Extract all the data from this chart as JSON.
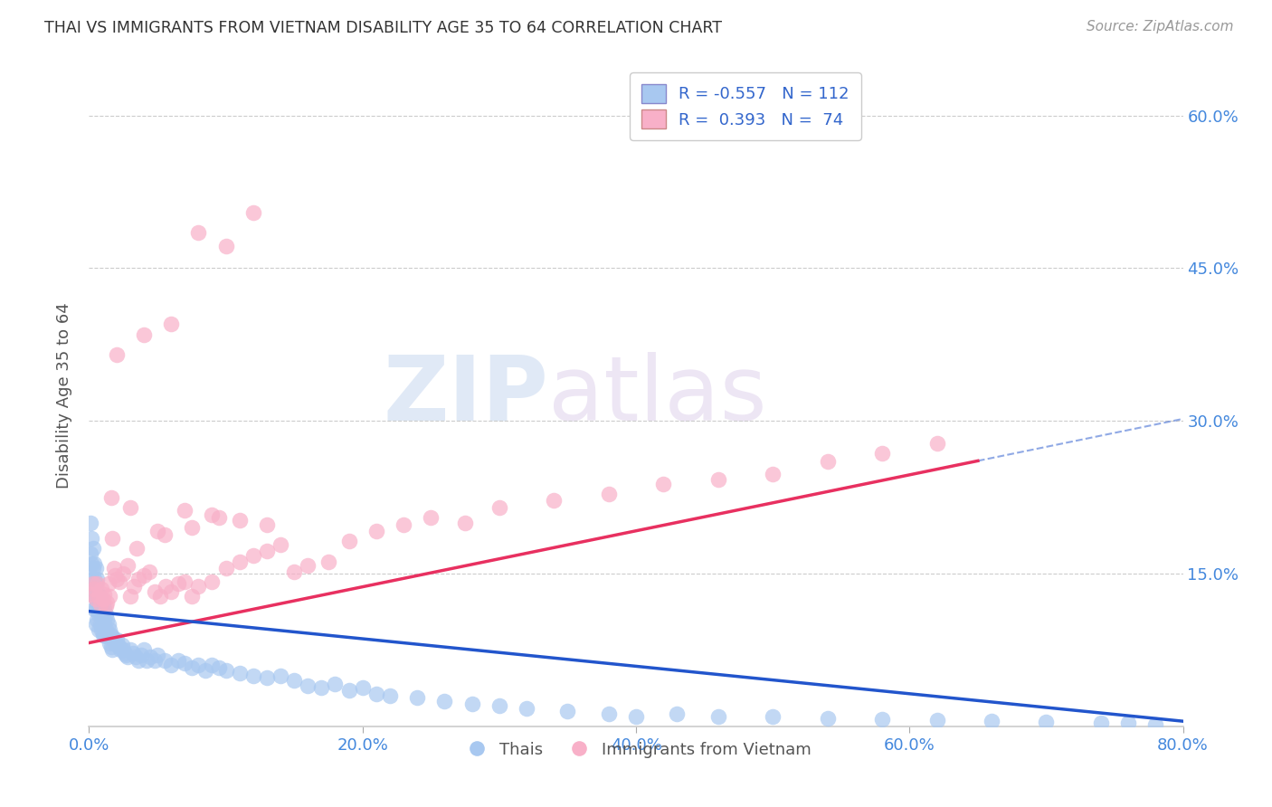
{
  "title": "THAI VS IMMIGRANTS FROM VIETNAM DISABILITY AGE 35 TO 64 CORRELATION CHART",
  "source": "Source: ZipAtlas.com",
  "ylabel": "Disability Age 35 to 64",
  "xlim": [
    0.0,
    0.8
  ],
  "ylim": [
    0.0,
    0.65
  ],
  "xticks": [
    0.0,
    0.2,
    0.4,
    0.6,
    0.8
  ],
  "xticklabels": [
    "0.0%",
    "20.0%",
    "40.0%",
    "60.0%",
    "80.0%"
  ],
  "yticks": [
    0.0,
    0.15,
    0.3,
    0.45,
    0.6
  ],
  "yticklabels_right": [
    "",
    "15.0%",
    "30.0%",
    "45.0%",
    "60.0%"
  ],
  "blue_color": "#a8c8f0",
  "blue_line_color": "#2255cc",
  "pink_color": "#f8b0c8",
  "pink_line_color": "#e83060",
  "legend_blue_label": "R = -0.557   N = 112",
  "legend_pink_label": "R =  0.393   N =  74",
  "blue_intercept": 0.113,
  "blue_slope": -0.135,
  "pink_intercept": 0.082,
  "pink_slope": 0.275,
  "watermark_zip": "ZIP",
  "watermark_atlas": "atlas",
  "legend_thai": "Thais",
  "legend_viet": "Immigrants from Vietnam",
  "blue_x": [
    0.001,
    0.001,
    0.002,
    0.002,
    0.002,
    0.003,
    0.003,
    0.003,
    0.004,
    0.004,
    0.004,
    0.004,
    0.005,
    0.005,
    0.005,
    0.005,
    0.005,
    0.006,
    0.006,
    0.006,
    0.006,
    0.007,
    0.007,
    0.007,
    0.007,
    0.008,
    0.008,
    0.008,
    0.009,
    0.009,
    0.009,
    0.01,
    0.01,
    0.01,
    0.01,
    0.011,
    0.011,
    0.011,
    0.012,
    0.012,
    0.013,
    0.013,
    0.014,
    0.014,
    0.015,
    0.015,
    0.016,
    0.016,
    0.017,
    0.017,
    0.018,
    0.019,
    0.02,
    0.021,
    0.022,
    0.023,
    0.024,
    0.025,
    0.026,
    0.027,
    0.028,
    0.03,
    0.032,
    0.034,
    0.036,
    0.038,
    0.04,
    0.042,
    0.045,
    0.048,
    0.05,
    0.055,
    0.06,
    0.065,
    0.07,
    0.075,
    0.08,
    0.085,
    0.09,
    0.095,
    0.1,
    0.11,
    0.12,
    0.13,
    0.14,
    0.15,
    0.16,
    0.17,
    0.18,
    0.19,
    0.2,
    0.21,
    0.22,
    0.24,
    0.26,
    0.28,
    0.3,
    0.32,
    0.35,
    0.38,
    0.4,
    0.43,
    0.46,
    0.5,
    0.54,
    0.58,
    0.62,
    0.66,
    0.7,
    0.74,
    0.76,
    0.78
  ],
  "blue_y": [
    0.2,
    0.17,
    0.185,
    0.16,
    0.145,
    0.175,
    0.155,
    0.135,
    0.16,
    0.145,
    0.13,
    0.115,
    0.155,
    0.14,
    0.125,
    0.115,
    0.1,
    0.145,
    0.13,
    0.12,
    0.105,
    0.13,
    0.12,
    0.11,
    0.095,
    0.125,
    0.115,
    0.1,
    0.12,
    0.11,
    0.095,
    0.12,
    0.11,
    0.1,
    0.09,
    0.115,
    0.105,
    0.09,
    0.11,
    0.095,
    0.105,
    0.09,
    0.1,
    0.088,
    0.095,
    0.082,
    0.09,
    0.078,
    0.088,
    0.075,
    0.085,
    0.082,
    0.085,
    0.08,
    0.078,
    0.075,
    0.08,
    0.075,
    0.072,
    0.07,
    0.068,
    0.075,
    0.072,
    0.068,
    0.065,
    0.07,
    0.075,
    0.065,
    0.068,
    0.065,
    0.07,
    0.065,
    0.06,
    0.065,
    0.062,
    0.058,
    0.06,
    0.055,
    0.06,
    0.058,
    0.055,
    0.052,
    0.05,
    0.048,
    0.05,
    0.045,
    0.04,
    0.038,
    0.042,
    0.035,
    0.038,
    0.032,
    0.03,
    0.028,
    0.025,
    0.022,
    0.02,
    0.018,
    0.015,
    0.012,
    0.01,
    0.012,
    0.01,
    0.01,
    0.008,
    0.007,
    0.006,
    0.005,
    0.004,
    0.003,
    0.003,
    0.002
  ],
  "pink_x": [
    0.002,
    0.003,
    0.004,
    0.005,
    0.006,
    0.007,
    0.008,
    0.009,
    0.01,
    0.011,
    0.012,
    0.013,
    0.014,
    0.015,
    0.016,
    0.017,
    0.018,
    0.019,
    0.02,
    0.022,
    0.025,
    0.028,
    0.03,
    0.033,
    0.036,
    0.04,
    0.044,
    0.048,
    0.052,
    0.056,
    0.06,
    0.065,
    0.07,
    0.075,
    0.08,
    0.09,
    0.1,
    0.11,
    0.12,
    0.13,
    0.14,
    0.15,
    0.16,
    0.175,
    0.19,
    0.21,
    0.23,
    0.25,
    0.275,
    0.3,
    0.34,
    0.38,
    0.42,
    0.46,
    0.5,
    0.54,
    0.58,
    0.62,
    0.03,
    0.05,
    0.07,
    0.09,
    0.11,
    0.13,
    0.02,
    0.04,
    0.06,
    0.08,
    0.1,
    0.12,
    0.035,
    0.055,
    0.075,
    0.095
  ],
  "pink_y": [
    0.13,
    0.14,
    0.135,
    0.125,
    0.14,
    0.128,
    0.12,
    0.135,
    0.125,
    0.13,
    0.118,
    0.122,
    0.14,
    0.128,
    0.225,
    0.185,
    0.155,
    0.148,
    0.145,
    0.142,
    0.15,
    0.158,
    0.128,
    0.138,
    0.145,
    0.148,
    0.152,
    0.132,
    0.128,
    0.138,
    0.132,
    0.14,
    0.142,
    0.128,
    0.138,
    0.142,
    0.155,
    0.162,
    0.168,
    0.172,
    0.178,
    0.152,
    0.158,
    0.162,
    0.182,
    0.192,
    0.198,
    0.205,
    0.2,
    0.215,
    0.222,
    0.228,
    0.238,
    0.242,
    0.248,
    0.26,
    0.268,
    0.278,
    0.215,
    0.192,
    0.212,
    0.208,
    0.202,
    0.198,
    0.365,
    0.385,
    0.395,
    0.485,
    0.472,
    0.505,
    0.175,
    0.188,
    0.195,
    0.205
  ]
}
